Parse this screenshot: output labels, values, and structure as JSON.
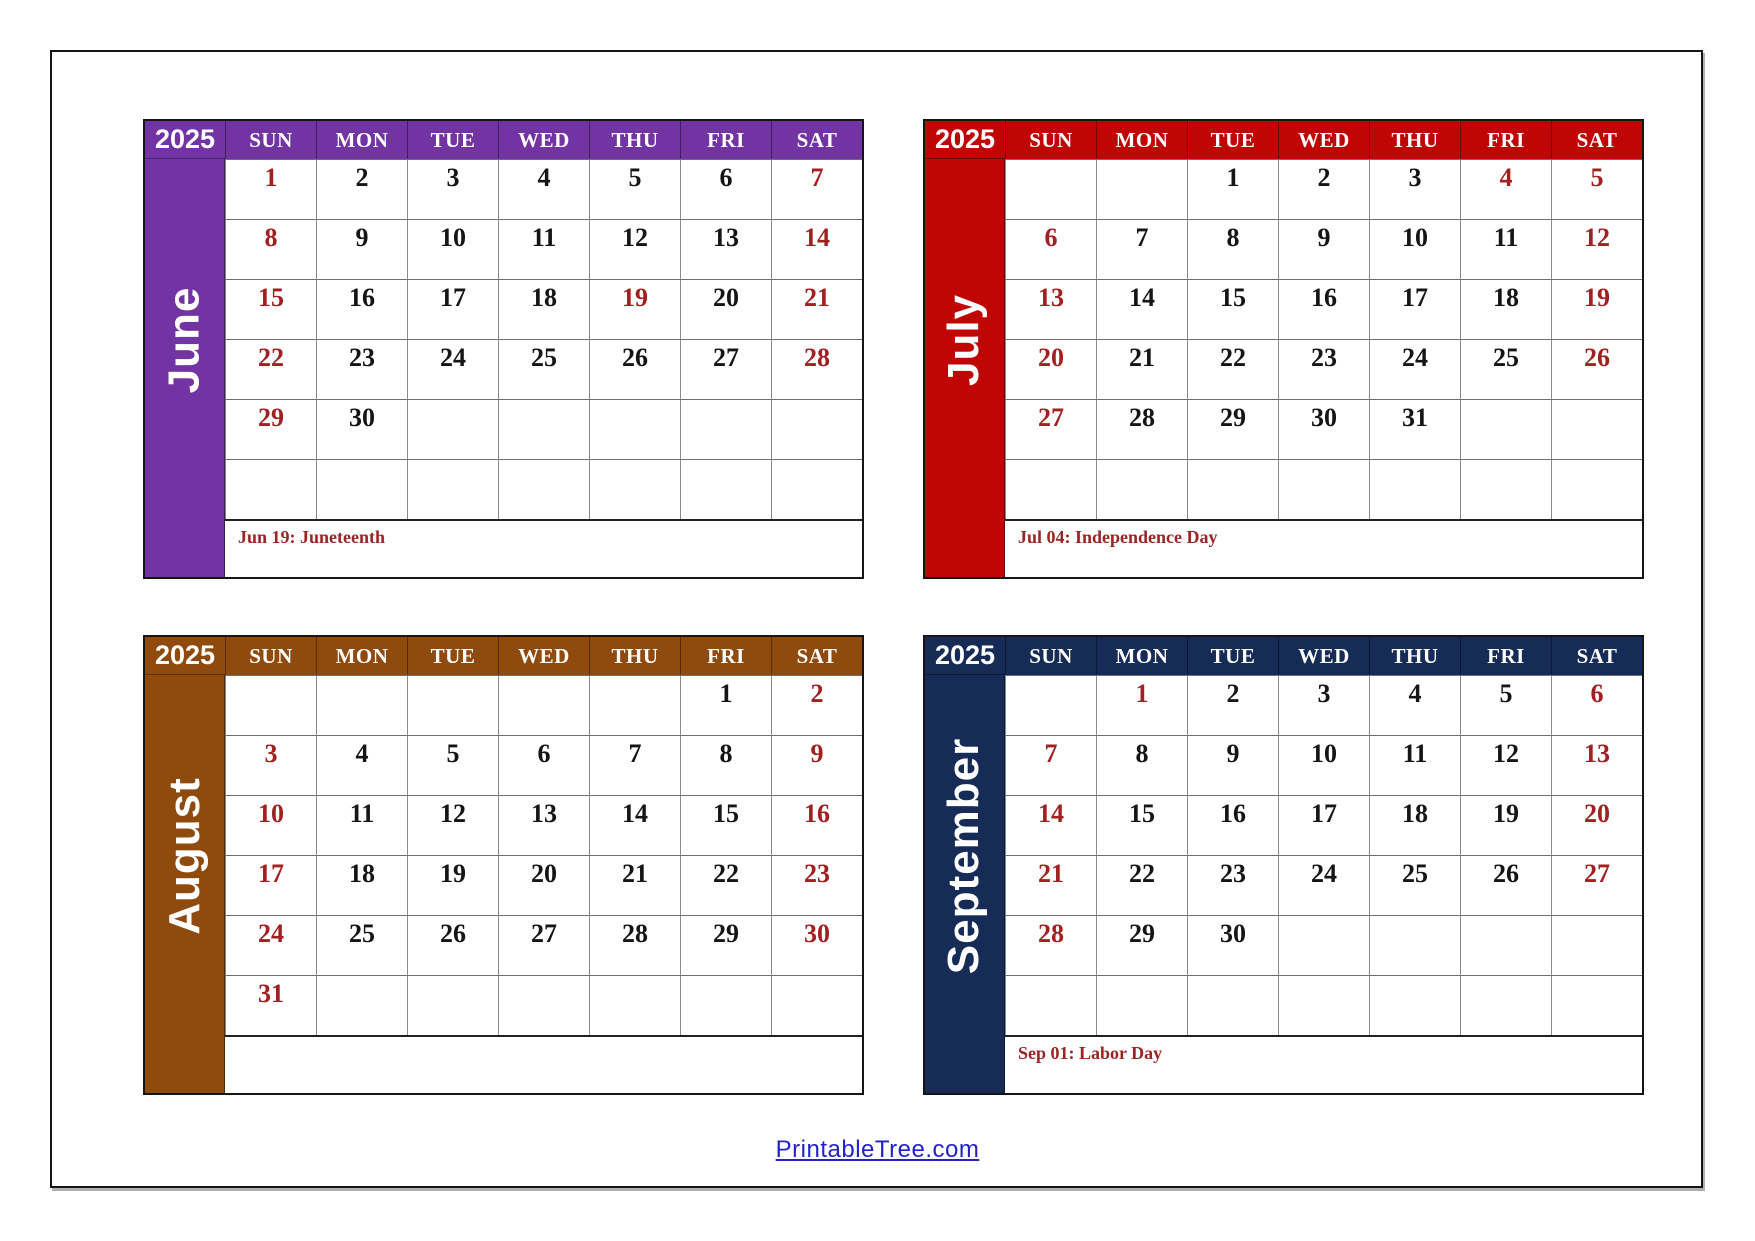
{
  "year": "2025",
  "weekdays": [
    "SUN",
    "MON",
    "TUE",
    "WED",
    "THU",
    "FRI",
    "SAT"
  ],
  "colors": {
    "date_red": "#A32020",
    "note_red": "#9B2424",
    "link_blue": "#2222CC"
  },
  "calendars": [
    {
      "month": "June",
      "color": "#7233A3",
      "holiday_note": "Jun 19: Juneteenth",
      "red_days": [
        1,
        7,
        8,
        14,
        15,
        19,
        21,
        22,
        28,
        29
      ],
      "weeks": [
        [
          "1",
          "2",
          "3",
          "4",
          "5",
          "6",
          "7"
        ],
        [
          "8",
          "9",
          "10",
          "11",
          "12",
          "13",
          "14"
        ],
        [
          "15",
          "16",
          "17",
          "18",
          "19",
          "20",
          "21"
        ],
        [
          "22",
          "23",
          "24",
          "25",
          "26",
          "27",
          "28"
        ],
        [
          "29",
          "30",
          "",
          "",
          "",
          "",
          ""
        ],
        [
          "",
          "",
          "",
          "",
          "",
          "",
          ""
        ]
      ]
    },
    {
      "month": "July",
      "color": "#C00505",
      "holiday_note": "Jul 04: Independence Day",
      "red_days": [
        4,
        5,
        6,
        12,
        13,
        19,
        20,
        26,
        27
      ],
      "weeks": [
        [
          "",
          "",
          "1",
          "2",
          "3",
          "4",
          "5"
        ],
        [
          "6",
          "7",
          "8",
          "9",
          "10",
          "11",
          "12"
        ],
        [
          "13",
          "14",
          "15",
          "16",
          "17",
          "18",
          "19"
        ],
        [
          "20",
          "21",
          "22",
          "23",
          "24",
          "25",
          "26"
        ],
        [
          "27",
          "28",
          "29",
          "30",
          "31",
          "",
          ""
        ],
        [
          "",
          "",
          "",
          "",
          "",
          "",
          ""
        ]
      ]
    },
    {
      "month": "August",
      "color": "#8F4A0E",
      "holiday_note": "",
      "red_days": [
        2,
        3,
        9,
        10,
        16,
        17,
        23,
        24,
        30,
        31
      ],
      "weeks": [
        [
          "",
          "",
          "",
          "",
          "",
          "1",
          "2"
        ],
        [
          "3",
          "4",
          "5",
          "6",
          "7",
          "8",
          "9"
        ],
        [
          "10",
          "11",
          "12",
          "13",
          "14",
          "15",
          "16"
        ],
        [
          "17",
          "18",
          "19",
          "20",
          "21",
          "22",
          "23"
        ],
        [
          "24",
          "25",
          "26",
          "27",
          "28",
          "29",
          "30"
        ],
        [
          "31",
          "",
          "",
          "",
          "",
          "",
          ""
        ]
      ]
    },
    {
      "month": "September",
      "color": "#172B57",
      "holiday_note": "Sep 01: Labor Day",
      "red_days": [
        1,
        6,
        7,
        13,
        14,
        20,
        21,
        27,
        28
      ],
      "weeks": [
        [
          "",
          "1",
          "2",
          "3",
          "4",
          "5",
          "6"
        ],
        [
          "7",
          "8",
          "9",
          "10",
          "11",
          "12",
          "13"
        ],
        [
          "14",
          "15",
          "16",
          "17",
          "18",
          "19",
          "20"
        ],
        [
          "21",
          "22",
          "23",
          "24",
          "25",
          "26",
          "27"
        ],
        [
          "28",
          "29",
          "30",
          "",
          "",
          "",
          ""
        ],
        [
          "",
          "",
          "",
          "",
          "",
          "",
          ""
        ]
      ]
    }
  ],
  "footer": {
    "link_label": "PrintableTree.com"
  }
}
